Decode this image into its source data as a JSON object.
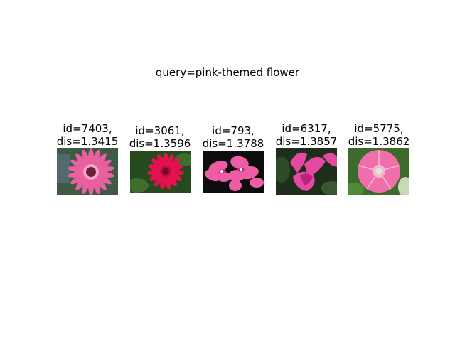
{
  "title": "query=pink-themed flower",
  "results": [
    {
      "id_label": "id=7403,",
      "dis_label": "dis=1.3415",
      "subject": "pink-gerbera-daisy",
      "colors": {
        "bg": "#3e5a44",
        "petal": "#e8609e",
        "center": "#6b1f3a"
      }
    },
    {
      "id_label": "id=3061,",
      "dis_label": "dis=1.3596",
      "subject": "red-gerbera-daisy",
      "colors": {
        "bg": "#244a1e",
        "petal": "#e3124f",
        "center": "#7a0a22"
      }
    },
    {
      "id_label": "id=793,",
      "dis_label": "dis=1.3788",
      "subject": "pink-lily-cluster",
      "colors": {
        "bg": "#0d0d0d",
        "petal": "#ee5ca6",
        "center": "#ffffff"
      }
    },
    {
      "id_label": "id=6317,",
      "dis_label": "dis=1.3857",
      "subject": "pink-cyclamen",
      "colors": {
        "bg": "#1e2e1a",
        "petal": "#e44aa0",
        "center": "#b8257a"
      }
    },
    {
      "id_label": "id=5775,",
      "dis_label": "dis=1.3862",
      "subject": "pink-morning-glory",
      "colors": {
        "bg": "#3c6b2c",
        "petal": "#f06eaa",
        "center": "#d8f0c8"
      }
    }
  ]
}
